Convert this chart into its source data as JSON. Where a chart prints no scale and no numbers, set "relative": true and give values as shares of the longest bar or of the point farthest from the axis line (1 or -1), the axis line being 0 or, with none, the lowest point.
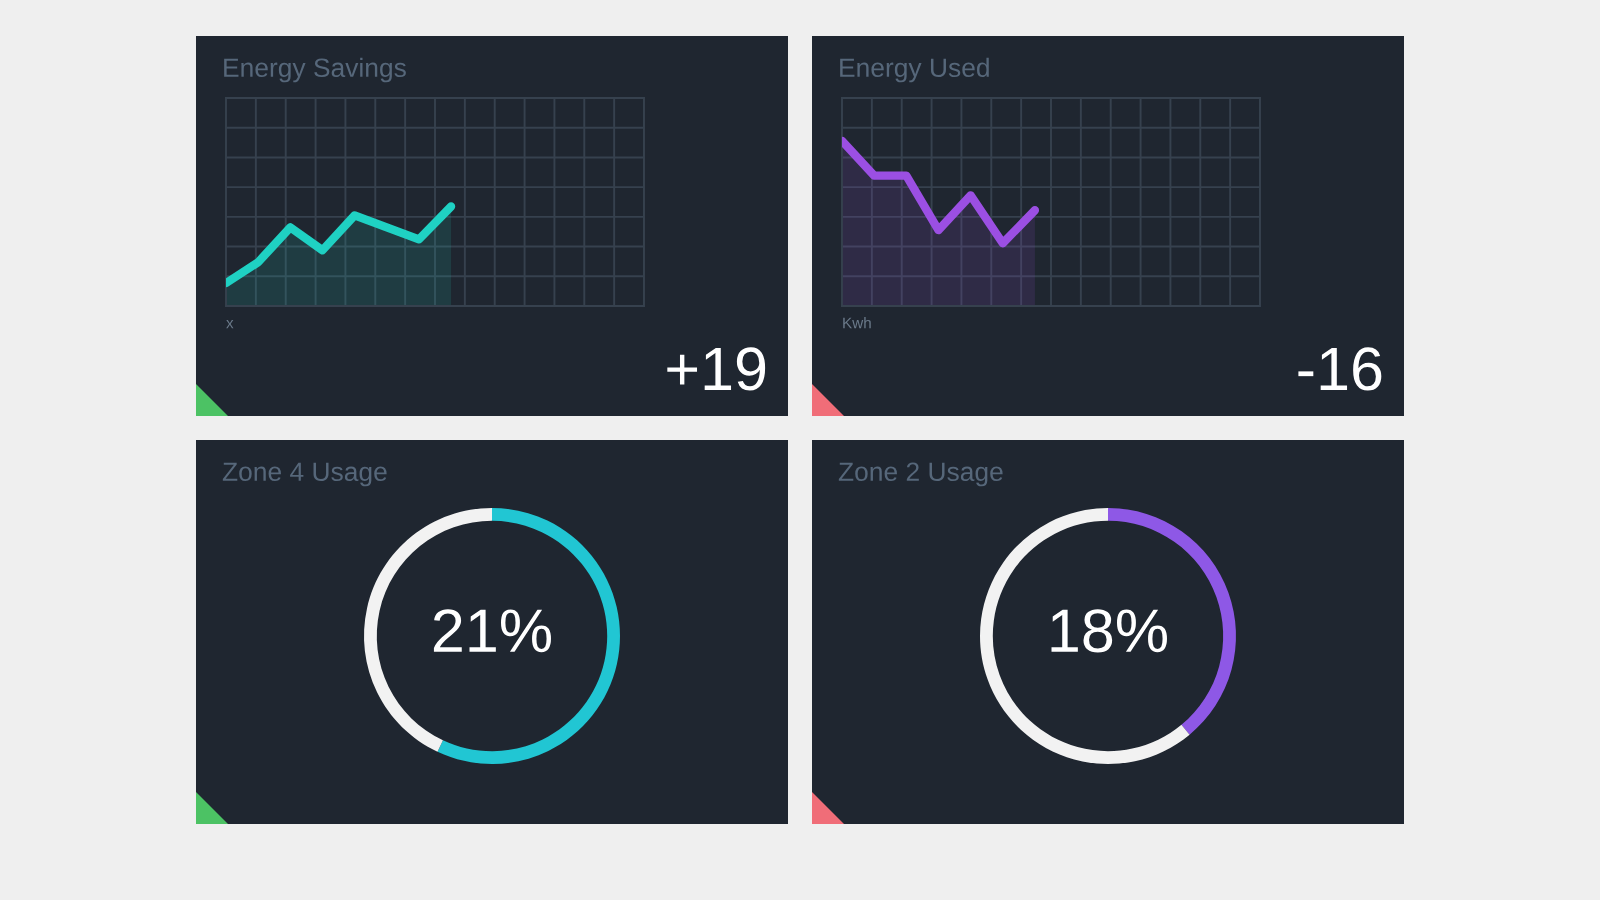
{
  "chart_data": [
    {
      "type": "area",
      "title": "Energy Savings",
      "xlabel": "x",
      "relative": true,
      "categories": [
        null,
        null,
        null,
        null,
        null,
        null,
        null,
        null
      ],
      "values": [
        0.23,
        0.44,
        0.79,
        0.56,
        0.91,
        0.79,
        0.67,
        1
      ],
      "color": "#1fd1c3",
      "grid": true,
      "tick_labels": false,
      "annotations": [
        "+19"
      ]
    },
    {
      "type": "area",
      "title": "Energy Used",
      "xlabel": "Kwh",
      "relative": true,
      "categories": [
        null,
        null,
        null,
        null,
        null,
        null,
        null
      ],
      "values": [
        1,
        0.79,
        0.79,
        0.46,
        0.67,
        0.38,
        0.58
      ],
      "color": "#9b4fe3",
      "grid": true,
      "tick_labels": false,
      "annotations": [
        "-16"
      ]
    },
    {
      "type": "donut",
      "title": "Zone 4 Usage",
      "categories": [
        null,
        null
      ],
      "values": [
        57,
        43
      ],
      "colors": [
        "#21c6d3",
        "#f2f2f2"
      ],
      "annotations": [
        "21%"
      ]
    },
    {
      "type": "donut",
      "title": "Zone 2 Usage",
      "categories": [
        null,
        null
      ],
      "values": [
        39,
        61
      ],
      "colors": [
        "#8e58e6",
        "#f2f2f2"
      ],
      "annotations": [
        "18%"
      ]
    }
  ]
}
